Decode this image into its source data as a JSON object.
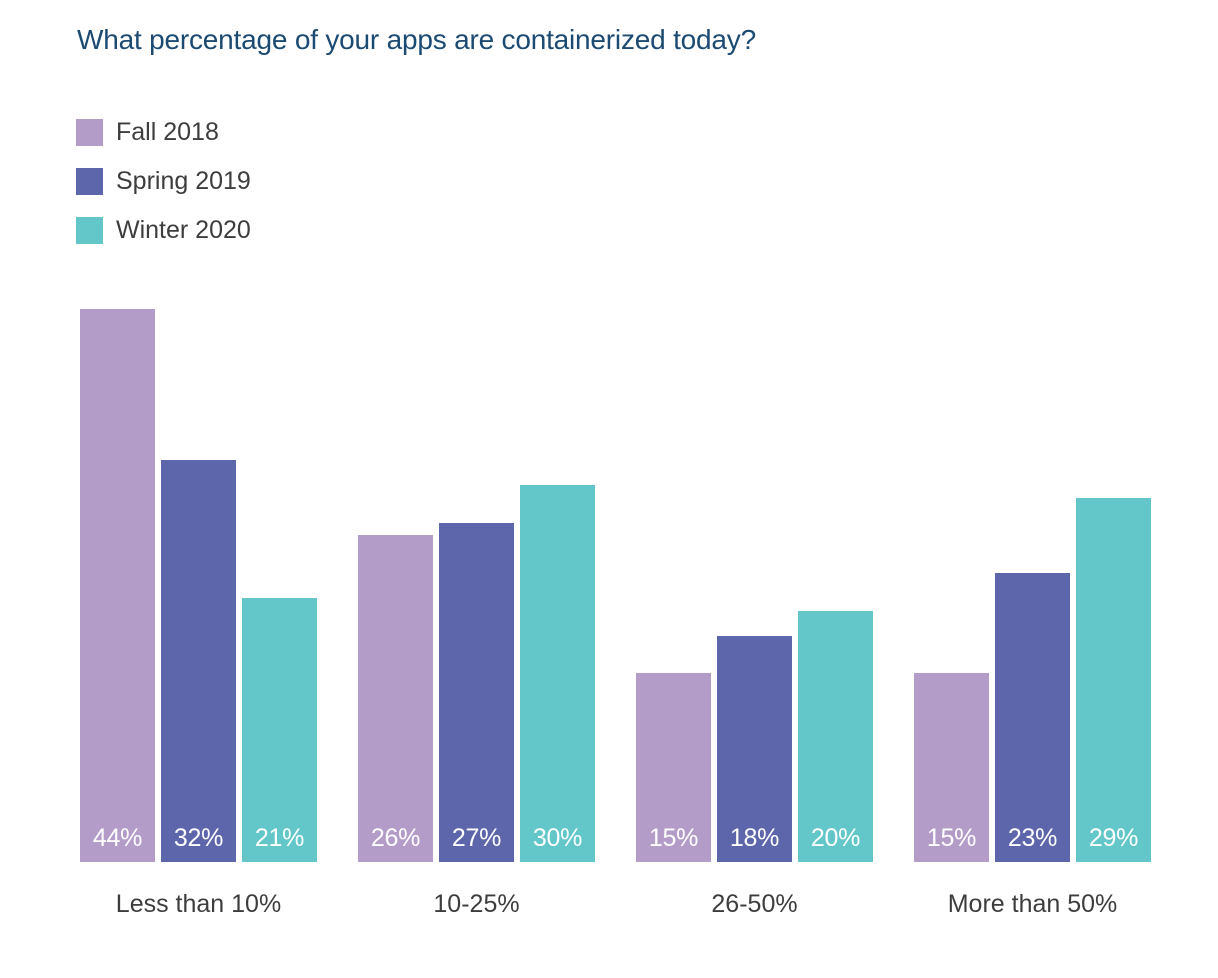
{
  "page": {
    "background": "#ffffff"
  },
  "title": {
    "text": "What percentage of your apps are containerized today?",
    "color": "#1b4a73"
  },
  "chart_data": {
    "type": "bar",
    "title": "What percentage of your apps are containerized today?",
    "categories": [
      "Less than 10%",
      "10-25%",
      "26-50%",
      "More than 50%"
    ],
    "series": [
      {
        "name": "Fall 2018",
        "color": "#b49cc8",
        "values": [
          44,
          26,
          15,
          15
        ]
      },
      {
        "name": "Spring 2019",
        "color": "#5e66ab",
        "values": [
          32,
          27,
          18,
          23
        ]
      },
      {
        "name": "Winter 2020",
        "color": "#63c7c9",
        "values": [
          21,
          30,
          20,
          29
        ]
      }
    ],
    "value_suffix": "%",
    "data_labels": true,
    "bar_label_color": "#ffffff",
    "axis_label_color": "#3d3d3d",
    "xlabel": "",
    "ylabel": "",
    "ylim": [
      0,
      47
    ],
    "grid": false,
    "legend_position": "top-left"
  }
}
